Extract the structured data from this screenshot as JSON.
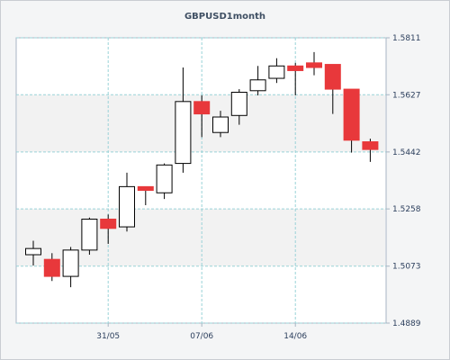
{
  "chart_data": {
    "type": "candlestick",
    "title": "GBPUSD1month",
    "x_tick_labels": [
      "31/05",
      "07/06",
      "14/06"
    ],
    "y_tick_labels": [
      "1.5811",
      "1.5627",
      "1.5442",
      "1.5258",
      "1.5073",
      "1.4889"
    ],
    "ylim": [
      1.4889,
      1.5811
    ],
    "grid": true,
    "colors": {
      "up": "#ffffff",
      "down": "#e8383b",
      "outline": "#000000",
      "grid": "#9ad3d8",
      "band": "#f2f2f2"
    },
    "candles": [
      {
        "o": 1.511,
        "h": 1.5155,
        "l": 1.5075,
        "c": 1.513
      },
      {
        "o": 1.5095,
        "h": 1.5115,
        "l": 1.5025,
        "c": 1.504
      },
      {
        "o": 1.504,
        "h": 1.5135,
        "l": 1.5005,
        "c": 1.5125
      },
      {
        "o": 1.5125,
        "h": 1.523,
        "l": 1.511,
        "c": 1.5225
      },
      {
        "o": 1.5225,
        "h": 1.524,
        "l": 1.5145,
        "c": 1.5195
      },
      {
        "o": 1.52,
        "h": 1.5375,
        "l": 1.5185,
        "c": 1.533
      },
      {
        "o": 1.533,
        "h": 1.533,
        "l": 1.527,
        "c": 1.5318
      },
      {
        "o": 1.531,
        "h": 1.5405,
        "l": 1.529,
        "c": 1.54
      },
      {
        "o": 1.5405,
        "h": 1.5715,
        "l": 1.5375,
        "c": 1.5605
      },
      {
        "o": 1.5605,
        "h": 1.5625,
        "l": 1.549,
        "c": 1.5565
      },
      {
        "o": 1.5505,
        "h": 1.5575,
        "l": 1.549,
        "c": 1.5555
      },
      {
        "o": 1.556,
        "h": 1.5645,
        "l": 1.553,
        "c": 1.5635
      },
      {
        "o": 1.564,
        "h": 1.572,
        "l": 1.5625,
        "c": 1.5675
      },
      {
        "o": 1.568,
        "h": 1.5745,
        "l": 1.5665,
        "c": 1.572
      },
      {
        "o": 1.572,
        "h": 1.573,
        "l": 1.5625,
        "c": 1.5705
      },
      {
        "o": 1.573,
        "h": 1.5765,
        "l": 1.569,
        "c": 1.5715
      },
      {
        "o": 1.5725,
        "h": 1.5725,
        "l": 1.5565,
        "c": 1.5645
      },
      {
        "o": 1.5645,
        "h": 1.5645,
        "l": 1.544,
        "c": 1.548
      },
      {
        "o": 1.5475,
        "h": 1.5485,
        "l": 1.541,
        "c": 1.545
      }
    ]
  }
}
